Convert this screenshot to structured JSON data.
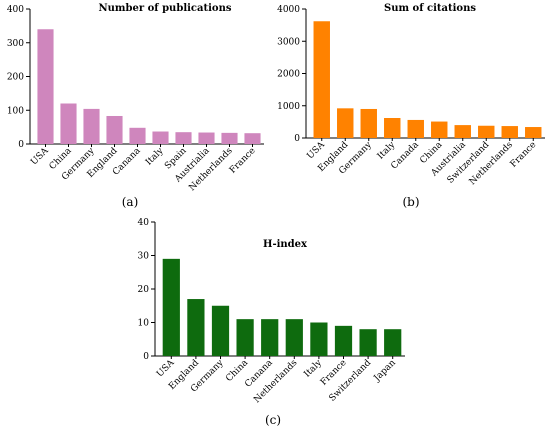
{
  "chart_data": [
    {
      "type": "bar",
      "title": "Number of publications",
      "panel_label": "(a)",
      "color": "#cf86bd",
      "ylim": [
        0,
        400
      ],
      "yticks": [
        0,
        100,
        200,
        300,
        400
      ],
      "categories": [
        "USA",
        "China",
        "Germany",
        "England",
        "Canana",
        "Italy",
        "Spain",
        "Austrialia",
        "Netherlands",
        "France"
      ],
      "values": [
        340,
        120,
        104,
        83,
        48,
        37,
        35,
        34,
        33,
        32
      ]
    },
    {
      "type": "bar",
      "title": "Sum of citations",
      "panel_label": "(b)",
      "color": "#ff8200",
      "ylim": [
        0,
        4000
      ],
      "yticks": [
        0,
        1000,
        2000,
        3000,
        4000
      ],
      "categories": [
        "USA",
        "England",
        "Germany",
        "Italy",
        "Canada",
        "China",
        "Austrialia",
        "Switzerland",
        "Netherlands",
        "France"
      ],
      "values": [
        3620,
        920,
        900,
        620,
        560,
        510,
        400,
        380,
        370,
        340
      ]
    },
    {
      "type": "bar",
      "title": "H-index",
      "panel_label": "(c)",
      "color": "#0e6b0e",
      "ylim": [
        0,
        40
      ],
      "yticks": [
        0,
        10,
        20,
        30,
        40
      ],
      "categories": [
        "USA",
        "England",
        "Germany",
        "China",
        "Canana",
        "Netherlands",
        "Italy",
        "France",
        "Switzerland",
        "Japan"
      ],
      "values": [
        29,
        17,
        15,
        11,
        11,
        11,
        10,
        9,
        8,
        8
      ]
    }
  ]
}
